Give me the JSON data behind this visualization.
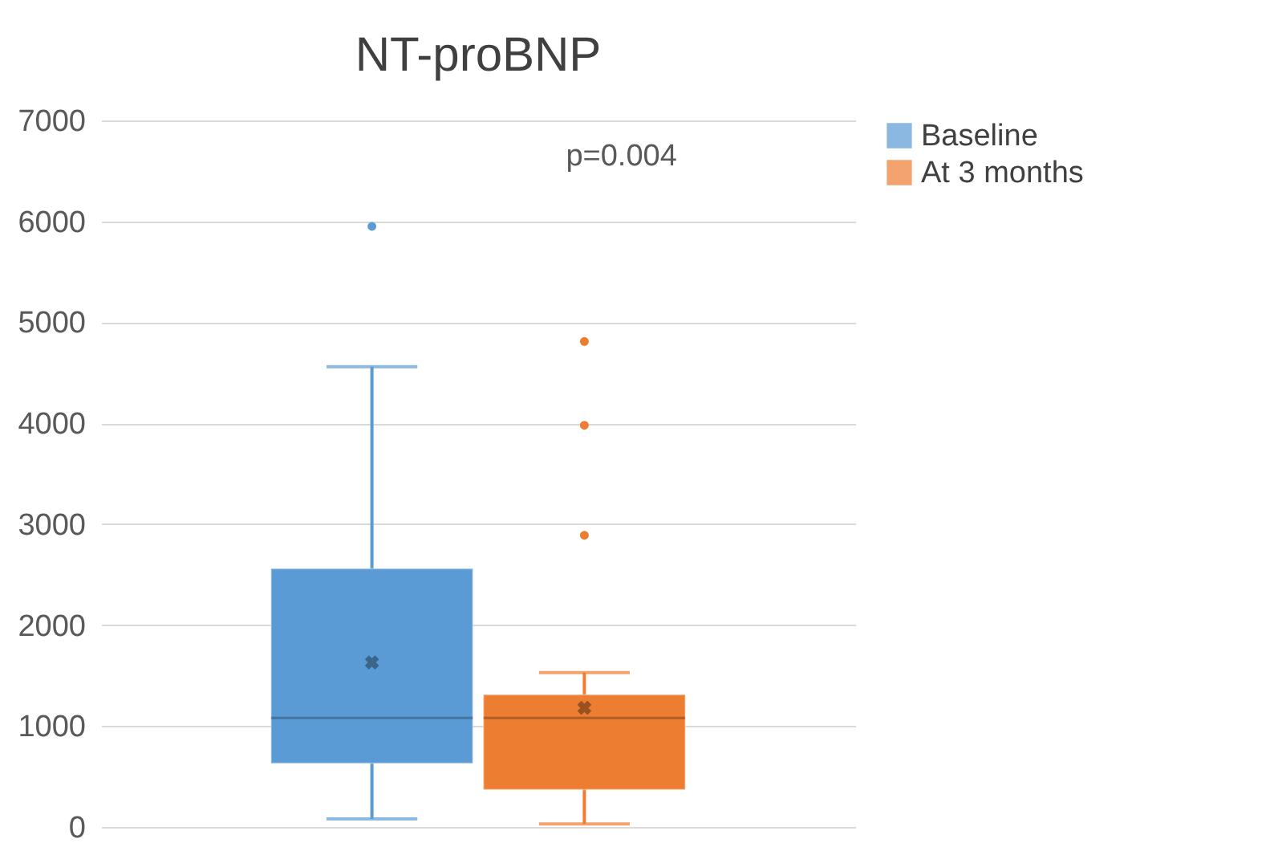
{
  "chart_data": {
    "type": "box",
    "title": "NT-proBNP",
    "categories": [
      null
    ],
    "series": [
      {
        "name": "Baseline",
        "color": "#5b9bd5",
        "boxes": [
          {
            "low": 80,
            "q1": 630,
            "median": 1080,
            "q3": 2560,
            "high": 4560,
            "mean": 1630,
            "outliers": [
              5950
            ]
          }
        ]
      },
      {
        "name": "At 3 months",
        "color": "#ed7d31",
        "boxes": [
          {
            "low": 30,
            "q1": 370,
            "median": 1080,
            "q3": 1310,
            "high": 1530,
            "mean": 1180,
            "outliers": [
              2890,
              3980,
              4810
            ]
          }
        ]
      }
    ],
    "ylim": [
      0,
      7000
    ],
    "yticks": [
      0,
      1000,
      2000,
      3000,
      4000,
      5000,
      6000,
      7000
    ],
    "grid": "y",
    "legend": "right",
    "tick_labels": "y",
    "annotations": [
      "p=0.004"
    ]
  }
}
